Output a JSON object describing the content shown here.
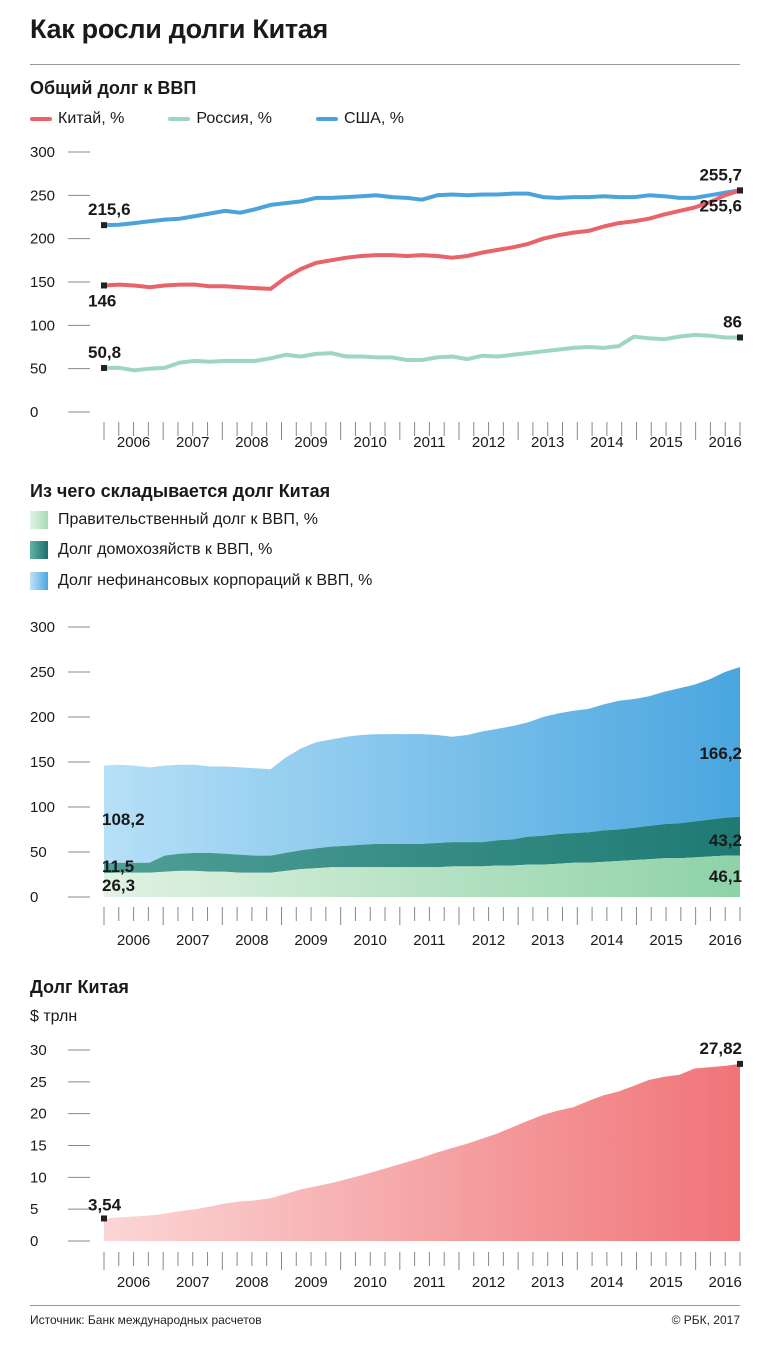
{
  "title": "Как росли долги Китая",
  "chart1": {
    "heading": "Общий долг к ВВП",
    "legend": [
      {
        "label": "Китай, %",
        "color": "#e8636a"
      },
      {
        "label": "Россия, %",
        "color": "#9fd6c0"
      },
      {
        "label": "США, %",
        "color": "#4aa3dc"
      }
    ]
  },
  "chart2": {
    "heading": "Из чего складывается долг Китая",
    "legend": [
      {
        "label": "Правительственный долг к ВВП, %",
        "color": "#b9e2c4"
      },
      {
        "label": "Долг домохозяйств к ВВП, %",
        "color": "#2f8c84"
      },
      {
        "label": "Долг нефинансовых корпораций к ВВП, %",
        "color": "#6bbde9"
      }
    ]
  },
  "chart3": {
    "heading": "Долг Китая",
    "unit": "$ трлн"
  },
  "footer": {
    "source": "Источник: Банк международных расчетов",
    "copyright": "© РБК, 2017"
  },
  "chart_data": [
    {
      "type": "line",
      "title": "Общий долг к ВВП",
      "years": [
        "2006",
        "2007",
        "2008",
        "2009",
        "2010",
        "2011",
        "2012",
        "2013",
        "2014",
        "2015",
        "2016"
      ],
      "ylim": [
        0,
        300
      ],
      "yticks": [
        0,
        50,
        100,
        150,
        200,
        250,
        300
      ],
      "series": [
        {
          "name": "США, %",
          "color": "#4aa3dc",
          "values": [
            215.6,
            216,
            218,
            220,
            222,
            223,
            226,
            229,
            232,
            230,
            234,
            239,
            241,
            243,
            247,
            247,
            248,
            249,
            250,
            248,
            247,
            245,
            250,
            251,
            250,
            251,
            251,
            252,
            252,
            248,
            247,
            248,
            248,
            249,
            248,
            248,
            250,
            249,
            247,
            247,
            250,
            253,
            255.7
          ],
          "labels": [
            {
              "i": 0,
              "text": "215,6",
              "pos": "above"
            },
            {
              "i": "last",
              "text": "255,7",
              "pos": "above"
            }
          ]
        },
        {
          "name": "Китай, %",
          "color": "#e8636a",
          "values": [
            146,
            147,
            146,
            144,
            146,
            147,
            147,
            145,
            145,
            144,
            143,
            142,
            155,
            165,
            172,
            175,
            178,
            180,
            181,
            181,
            180,
            181,
            180,
            178,
            180,
            184,
            187,
            190,
            194,
            200,
            204,
            207,
            209,
            214,
            218,
            220,
            223,
            228,
            232,
            236,
            242,
            250,
            255.6
          ],
          "labels": [
            {
              "i": 0,
              "text": "146",
              "pos": "below"
            },
            {
              "i": "last",
              "text": "255,6",
              "pos": "below"
            }
          ]
        },
        {
          "name": "Россия, %",
          "color": "#9fd6c0",
          "values": [
            50.8,
            51,
            48,
            50,
            51,
            57,
            59,
            58,
            59,
            59,
            59,
            62,
            66,
            64,
            67,
            68,
            64,
            64,
            63,
            63,
            60,
            60,
            63,
            64,
            61,
            65,
            64,
            66,
            68,
            70,
            72,
            74,
            75,
            74,
            76,
            87,
            85,
            84,
            87,
            89,
            88,
            86,
            86
          ],
          "labels": [
            {
              "i": 0,
              "text": "50,8",
              "pos": "above"
            },
            {
              "i": "last",
              "text": "86",
              "pos": "above"
            }
          ]
        }
      ]
    },
    {
      "type": "area",
      "title": "Из чего складывается долг Китая",
      "years": [
        "2006",
        "2007",
        "2008",
        "2009",
        "2010",
        "2011",
        "2012",
        "2013",
        "2014",
        "2015",
        "2016"
      ],
      "ylim": [
        0,
        300
      ],
      "yticks": [
        0,
        50,
        100,
        150,
        200,
        250,
        300
      ],
      "stacked": true,
      "series": [
        {
          "name": "Правительственный долг к ВВП, %",
          "values": [
            26.3,
            27,
            27,
            27,
            28,
            29,
            29,
            28,
            28,
            27,
            27,
            27,
            29,
            31,
            32,
            33,
            33,
            33,
            33,
            33,
            33,
            33,
            33,
            34,
            34,
            34,
            35,
            35,
            36,
            36,
            37,
            38,
            38,
            39,
            40,
            41,
            42,
            43,
            43,
            44,
            45,
            46,
            46.1
          ],
          "labels": [
            {
              "i": 0,
              "text": "26,3"
            },
            {
              "i": "last",
              "text": "46,1"
            }
          ]
        },
        {
          "name": "Долг домохозяйств к ВВП, %",
          "values": [
            11.5,
            11,
            11,
            11,
            18,
            19,
            20,
            21,
            20,
            20,
            19,
            19,
            20,
            21,
            22,
            23,
            24,
            25,
            26,
            26,
            26,
            26,
            27,
            27,
            27,
            27,
            28,
            29,
            31,
            32,
            33,
            33,
            34,
            35,
            35,
            36,
            37,
            38,
            39,
            40,
            41,
            42,
            43.2
          ],
          "labels": [
            {
              "i": 0,
              "text": "11,5"
            },
            {
              "i": "last",
              "text": "43,2"
            }
          ]
        },
        {
          "name": "Долг нефинансовых корпораций к ВВП, %",
          "values": [
            108.2,
            109,
            108,
            106,
            100,
            99,
            98,
            96,
            97,
            97,
            97,
            96,
            106,
            113,
            118,
            119,
            121,
            122,
            122,
            122,
            122,
            122,
            120,
            117,
            119,
            123,
            124,
            126,
            127,
            132,
            134,
            136,
            137,
            140,
            143,
            143,
            144,
            147,
            150,
            152,
            156,
            162,
            166.2
          ],
          "labels": [
            {
              "i": 0,
              "text": "108,2"
            },
            {
              "i": "last",
              "text": "166,2"
            }
          ]
        }
      ]
    },
    {
      "type": "area",
      "title": "Долг Китая",
      "unit": "$ трлн",
      "years": [
        "2006",
        "2007",
        "2008",
        "2009",
        "2010",
        "2011",
        "2012",
        "2013",
        "2014",
        "2015",
        "2016"
      ],
      "ylim": [
        0,
        30
      ],
      "yticks": [
        0,
        5,
        10,
        15,
        20,
        25,
        30
      ],
      "series": [
        {
          "name": "",
          "values": [
            3.54,
            3.7,
            3.85,
            4.0,
            4.3,
            4.7,
            5.0,
            5.4,
            5.9,
            6.2,
            6.4,
            6.7,
            7.4,
            8.1,
            8.6,
            9.1,
            9.7,
            10.3,
            11.0,
            11.7,
            12.4,
            13.1,
            13.9,
            14.6,
            15.3,
            16.1,
            16.9,
            17.9,
            18.9,
            19.8,
            20.5,
            21.0,
            22.0,
            22.9,
            23.5,
            24.4,
            25.3,
            25.8,
            26.1,
            27.1,
            27.3,
            27.5,
            27.82
          ],
          "labels": [
            {
              "i": 0,
              "text": "3,54"
            },
            {
              "i": "last",
              "text": "27,82"
            }
          ]
        }
      ]
    }
  ]
}
